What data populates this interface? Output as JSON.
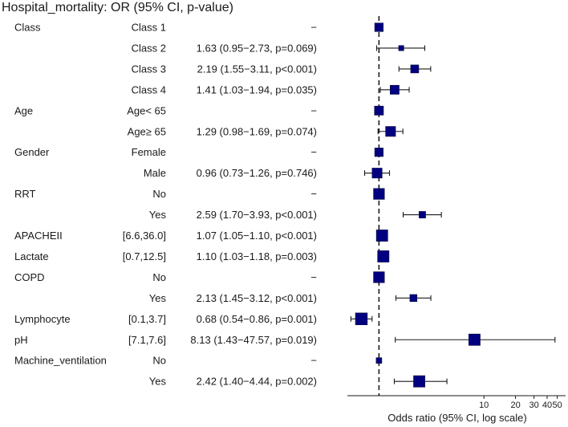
{
  "chart_data": {
    "type": "forest",
    "title": "Hospital_mortality: OR (95% CI, p-value)",
    "xlabel": "Odds ratio (95% CI, log scale)",
    "xscale": "log",
    "xlim": [
      0.5,
      60
    ],
    "reference_line": 1,
    "ticks": [
      {
        "value": 10,
        "label": "10"
      },
      {
        "value": 20,
        "label": "20"
      },
      {
        "value": 30,
        "label": "30"
      },
      {
        "value": 40,
        "label": "40"
      },
      {
        "value": 50,
        "label": "50"
      }
    ],
    "marker_color": "#000080",
    "rows": [
      {
        "variable": "Class",
        "level": "Class 1",
        "estimate_text": "−",
        "or": 1,
        "lo": null,
        "hi": null,
        "weight": 0.55
      },
      {
        "variable": "",
        "level": "Class 2",
        "estimate_text": "1.63 (0.95−2.73, p=0.069)",
        "or": 1.63,
        "lo": 0.95,
        "hi": 2.73,
        "weight": 0.2
      },
      {
        "variable": "",
        "level": "Class 3",
        "estimate_text": "2.19 (1.55−3.11, p<0.001)",
        "or": 2.19,
        "lo": 1.55,
        "hi": 3.11,
        "weight": 0.5
      },
      {
        "variable": "",
        "level": "Class 4",
        "estimate_text": "1.41 (1.03−1.94, p=0.035)",
        "or": 1.41,
        "lo": 1.03,
        "hi": 1.94,
        "weight": 0.6
      },
      {
        "variable": "Age",
        "level": "Age< 65",
        "estimate_text": "−",
        "or": 1,
        "lo": null,
        "hi": null,
        "weight": 0.6
      },
      {
        "variable": "",
        "level": "Age≥ 65",
        "estimate_text": "1.29 (0.98−1.69, p=0.074)",
        "or": 1.29,
        "lo": 0.98,
        "hi": 1.69,
        "weight": 0.7
      },
      {
        "variable": "Gender",
        "level": "Female",
        "estimate_text": "−",
        "or": 1,
        "lo": null,
        "hi": null,
        "weight": 0.55
      },
      {
        "variable": "",
        "level": "Male",
        "estimate_text": "0.96 (0.73−1.26, p=0.746)",
        "or": 0.96,
        "lo": 0.73,
        "hi": 1.26,
        "weight": 0.7
      },
      {
        "variable": "RRT",
        "level": "No",
        "estimate_text": "−",
        "or": 1,
        "lo": null,
        "hi": null,
        "weight": 0.8
      },
      {
        "variable": "",
        "level": "Yes",
        "estimate_text": "2.59 (1.70−3.93, p<0.001)",
        "or": 2.59,
        "lo": 1.7,
        "hi": 3.93,
        "weight": 0.35
      },
      {
        "variable": "APACHEII",
        "level": "[6.6,36.0]",
        "estimate_text": "1.07 (1.05−1.10, p<0.001)",
        "or": 1.07,
        "lo": 1.05,
        "hi": 1.1,
        "weight": 0.85
      },
      {
        "variable": "Lactate",
        "level": "[0.7,12.5]",
        "estimate_text": "1.10 (1.03−1.18, p=0.003)",
        "or": 1.1,
        "lo": 1.03,
        "hi": 1.18,
        "weight": 0.85
      },
      {
        "variable": "COPD",
        "level": "No",
        "estimate_text": "−",
        "or": 1,
        "lo": null,
        "hi": null,
        "weight": 0.8
      },
      {
        "variable": "",
        "level": "Yes",
        "estimate_text": "2.13 (1.45−3.12, p<0.001)",
        "or": 2.13,
        "lo": 1.45,
        "hi": 3.12,
        "weight": 0.4
      },
      {
        "variable": "Lymphocyte",
        "level": "[0.1,3.7]",
        "estimate_text": "0.68 (0.54−0.86, p=0.001)",
        "or": 0.68,
        "lo": 0.54,
        "hi": 0.86,
        "weight": 0.9
      },
      {
        "variable": "pH",
        "level": "[7.1,7.6]",
        "estimate_text": "8.13 (1.43−47.57, p=0.019)",
        "or": 8.13,
        "lo": 1.43,
        "hi": 47.57,
        "weight": 0.85
      },
      {
        "variable": "Machine_ventilation",
        "level": "No",
        "estimate_text": "−",
        "or": 1,
        "lo": null,
        "hi": null,
        "weight": 0.25
      },
      {
        "variable": "",
        "level": "Yes",
        "estimate_text": "2.42 (1.40−4.44, p=0.002)",
        "or": 2.42,
        "lo": 1.4,
        "hi": 4.44,
        "weight": 0.85
      }
    ]
  }
}
